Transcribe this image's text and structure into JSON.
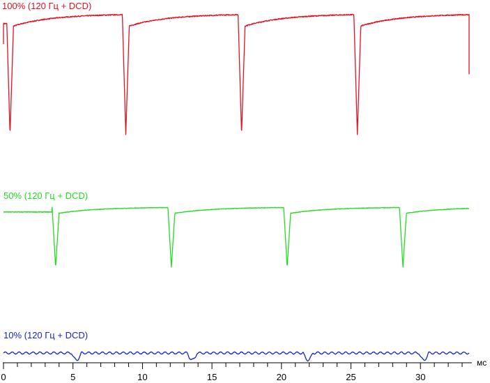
{
  "chart_data": {
    "type": "line",
    "x_unit": "мс",
    "xlim": [
      0,
      33.5
    ],
    "x_ticks": [
      0,
      5,
      10,
      15,
      20,
      25,
      30
    ],
    "minor_tick_step": 1,
    "series": [
      {
        "name": "100% (120 Гц + DCD)",
        "color": "#e8101e",
        "period_ms": 8.33,
        "first_dip_ms": 0.22,
        "dip_width_ms": 0.5,
        "level_high": 1.0,
        "level_low": 0.0,
        "recovery_start": 0.9,
        "recovery_tau_ms": 0.35,
        "end_ms": 33.5
      },
      {
        "name": "50% (120 Гц + DCD)",
        "color": "#22dd22",
        "period_ms": 8.33,
        "first_dip_ms": 3.5,
        "dip_width_ms": 0.5,
        "level_high": 1.0,
        "level_low": 0.0,
        "recovery_start": 0.9,
        "recovery_tau_ms": 0.35,
        "end_ms": 33.5
      },
      {
        "name": "10% (120 Гц + DCD)",
        "color": "#1a22c8",
        "period_ms": 8.33,
        "first_dip_ms": 4.9,
        "dip_width_ms": 0.5,
        "level_high": 1.0,
        "level_low": 0.0,
        "ripple_period_ms": 0.5,
        "ripple_amplitude": 0.15,
        "end_ms": 33.5
      }
    ]
  }
}
